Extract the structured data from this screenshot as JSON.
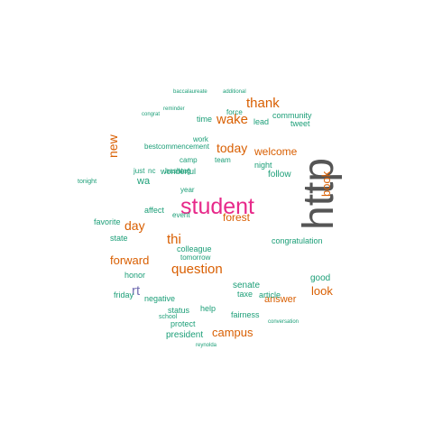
{
  "colors": {
    "c1": "#1b9e77",
    "c2": "#d95f02",
    "c3": "#7570b3",
    "c4": "#e7298a",
    "c5": "#555555"
  },
  "words": [
    "http",
    "student",
    "thank",
    "wake",
    "today",
    "question",
    "thi",
    "new",
    "day",
    "campus",
    "forward",
    "rt",
    "forest",
    "welcome",
    "look",
    "book",
    "answer",
    "good",
    "senate",
    "follow",
    "help",
    "president",
    "status",
    "protect",
    "colleague",
    "affect",
    "tomorrow",
    "state",
    "favorite",
    "negative",
    "friday",
    "honor",
    "community",
    "tweet",
    "lead",
    "force",
    "night",
    "wonderful",
    "congratulation",
    "article",
    "taxe",
    "fairness",
    "event",
    "wa",
    "hashtag",
    "nc",
    "just",
    "commencement",
    "best",
    "time",
    "work",
    "year",
    "camp",
    "tonight",
    "conversation",
    "school",
    "reynolda",
    "team",
    "congrat",
    "baccalaureate",
    "additional",
    "reminder"
  ]
}
